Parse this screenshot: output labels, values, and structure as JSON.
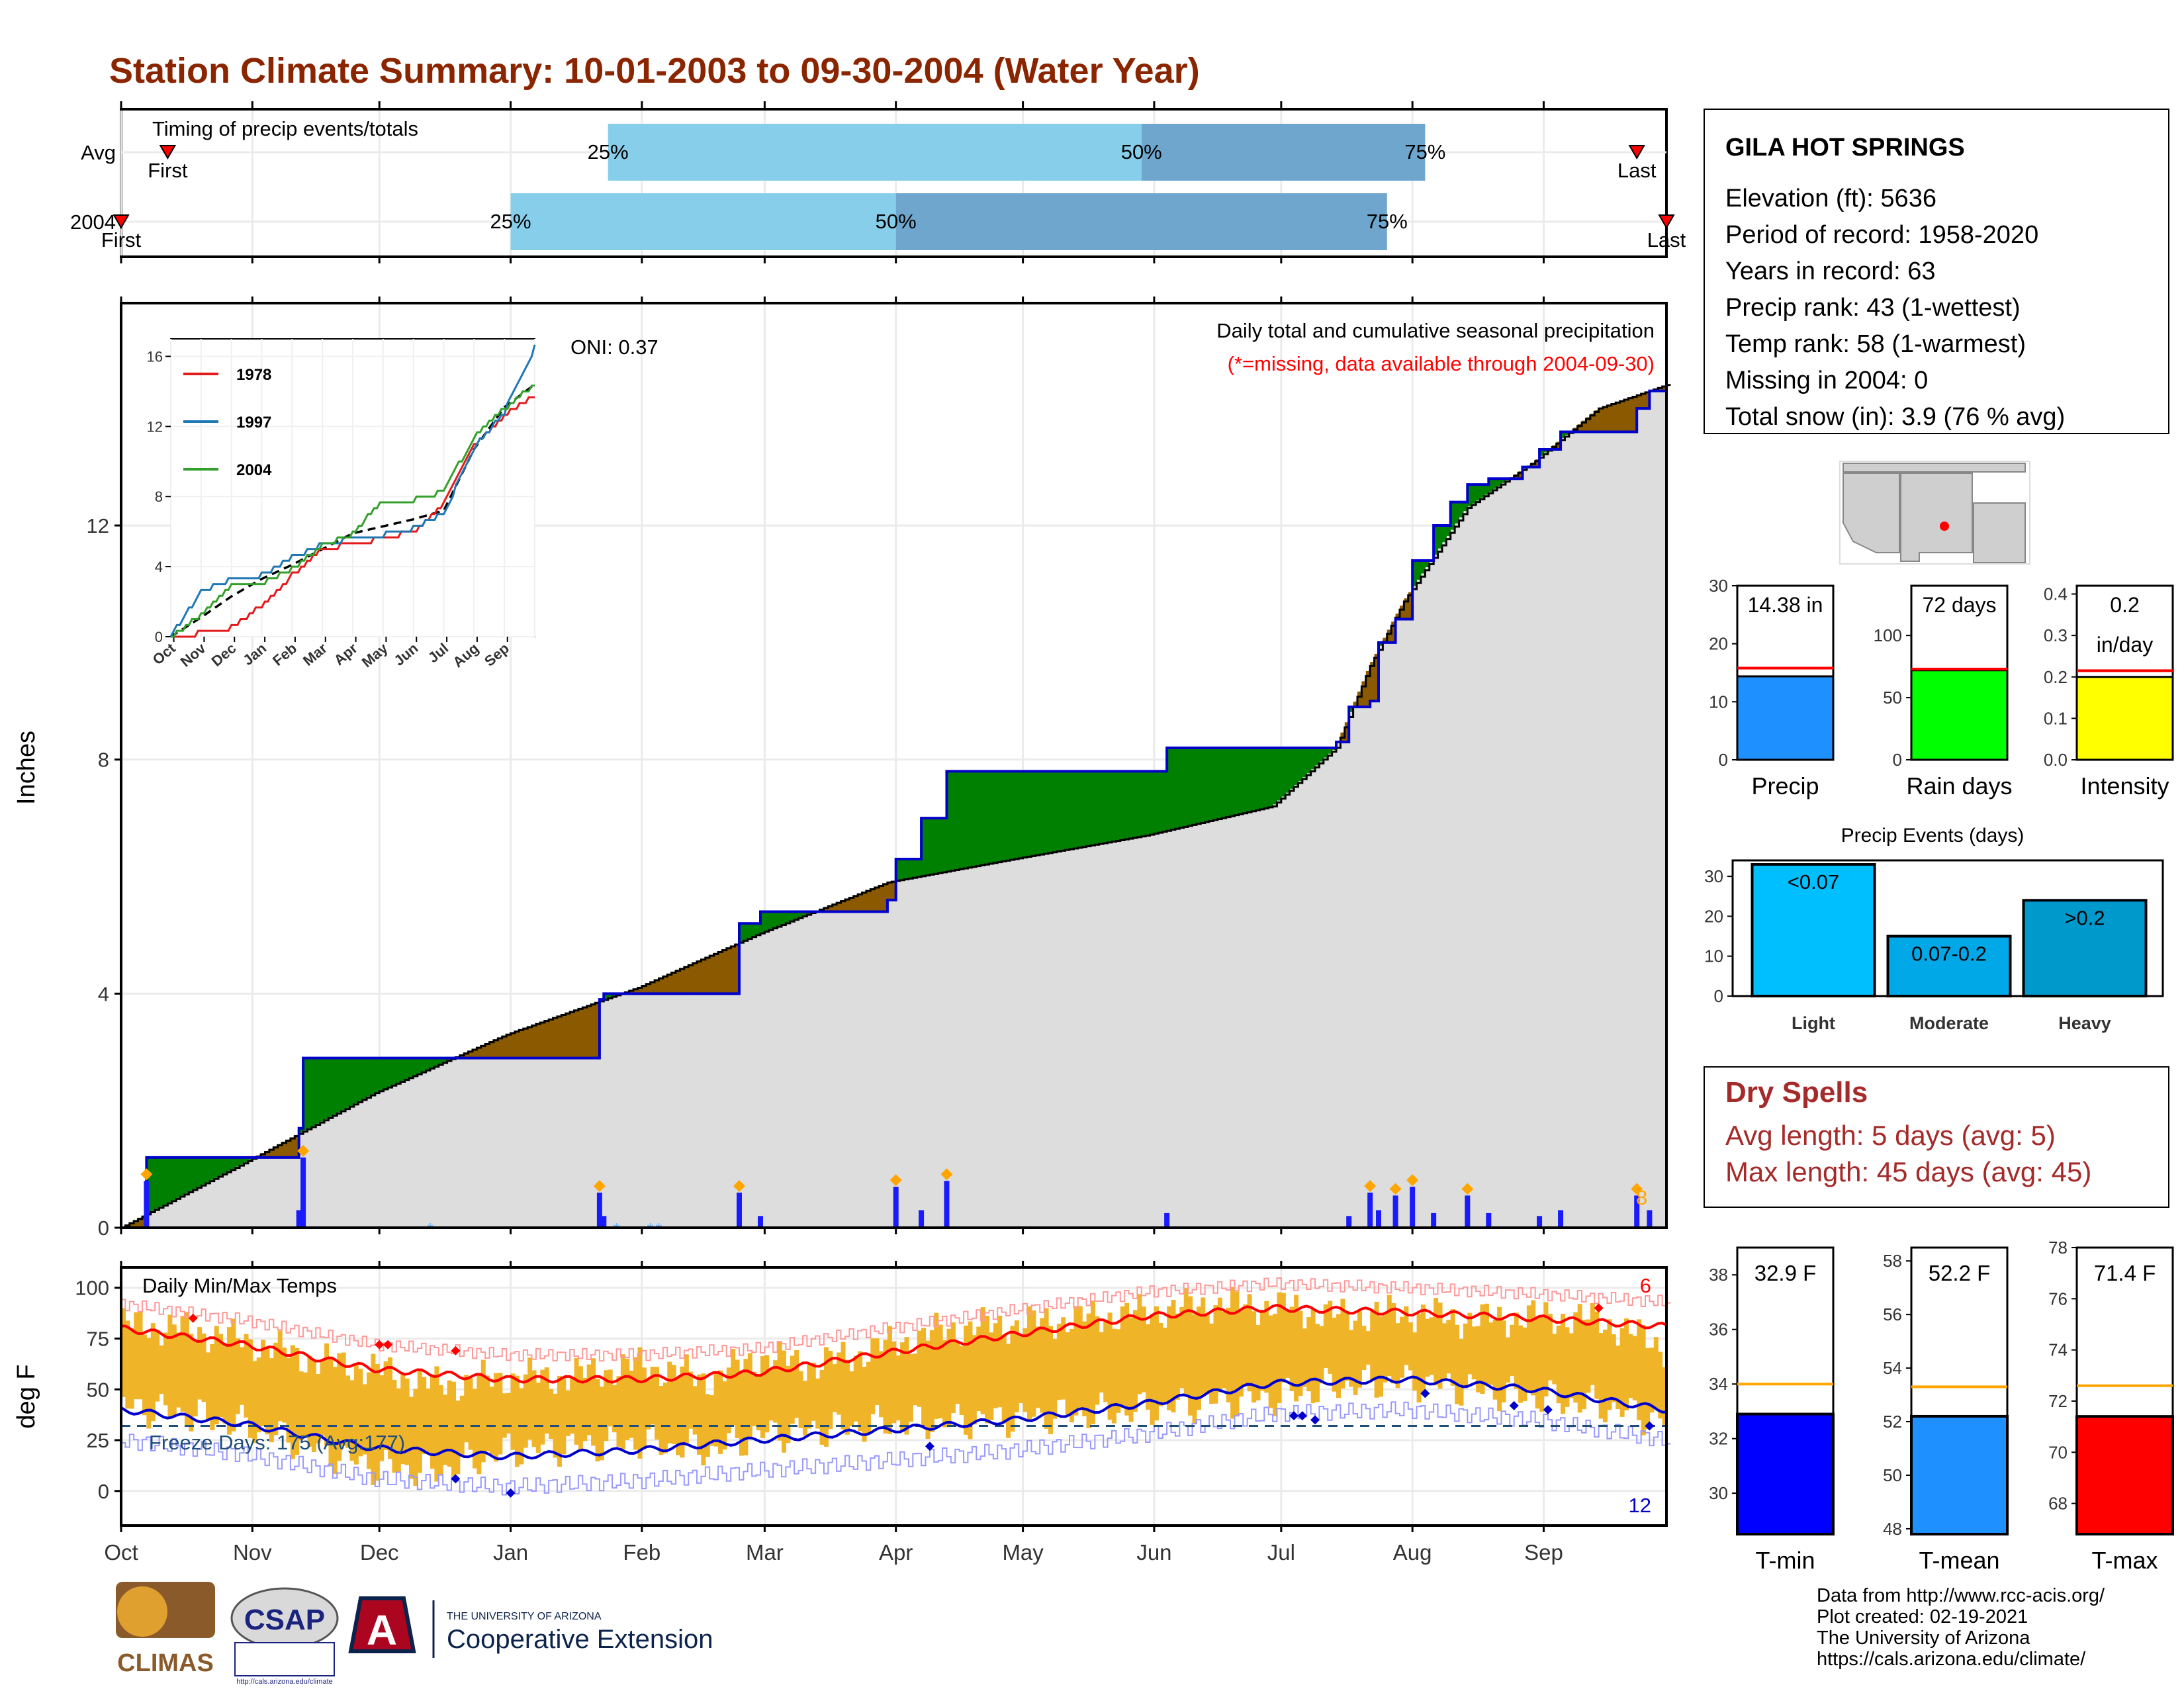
{
  "title": "Station Climate Summary: 10-01-2003 to 09-30-2004 (Water Year)",
  "timing": {
    "title": "Timing of precip events/totals",
    "rows": [
      {
        "label": "Avg",
        "first_day": 12,
        "p25_day": 116,
        "p50_day": 242,
        "p75_day": 309,
        "last_day": 359,
        "first_label": "First",
        "last_label": "Last",
        "p25_label": "25%",
        "p50_label": "50%",
        "p75_label": "75%"
      },
      {
        "label": "2004",
        "first_day": 1,
        "p25_day": 93,
        "p50_day": 184,
        "p75_day": 300,
        "last_day": 366,
        "first_label": "First",
        "last_label": "Last",
        "p25_label": "25%",
        "p50_label": "50%",
        "p75_label": "75%"
      }
    ]
  },
  "precip_panel": {
    "ylabel": "Inches",
    "yticks": [
      "0",
      "4",
      "8",
      "12"
    ],
    "note1": "Daily total and cumulative seasonal precipitation",
    "note2": "(*=missing, data available through 2004-09-30)",
    "oni": "ONI: 0.37",
    "corner_value": "8",
    "colors": {
      "cum2004": "#0000cc",
      "above": "#008000",
      "below": "#8b5a00",
      "avg_fill": "#dddddd",
      "daily": "#1a1aff",
      "marker": "#ffa500",
      "snow": "#66b3ff"
    }
  },
  "inset": {
    "yticks": [
      "0",
      "4",
      "8",
      "12",
      "16"
    ],
    "xticks": [
      "Oct",
      "Nov",
      "Dec",
      "Jan",
      "Feb",
      "Mar",
      "Apr",
      "May",
      "Jun",
      "Jul",
      "Aug",
      "Sep"
    ],
    "legend": [
      {
        "name": "1978",
        "color": "#e31a1c"
      },
      {
        "name": "1997",
        "color": "#1f78b4"
      },
      {
        "name": "2004",
        "color": "#33a02c"
      }
    ]
  },
  "temp_panel": {
    "ylabel": "deg F",
    "title": "Daily Min/Max Temps",
    "yticks": [
      "0",
      "25",
      "50",
      "75",
      "100"
    ],
    "freeze_label": "Freeze Days: 175 (Avg:177)",
    "freeze_line": 32,
    "hi_count": "6",
    "lo_count": "12",
    "colors": {
      "bar": "#f0b429",
      "max": "#ff0000",
      "min": "#0000cc",
      "maxrec": "#ff9999",
      "minrec": "#9999ff",
      "freeze": "#1f4e79"
    }
  },
  "months": [
    "Oct",
    "Nov",
    "Dec",
    "Jan",
    "Feb",
    "Mar",
    "Apr",
    "May",
    "Jun",
    "Jul",
    "Aug",
    "Sep"
  ],
  "station": {
    "name": "GILA HOT SPRINGS",
    "lines": [
      "Elevation (ft): 5636",
      "Period of record: 1958-2020",
      "Years in record: 63",
      "Precip rank: 43 (1-wettest)",
      "Temp rank: 58 (1-warmest)",
      "Missing in 2004: 0",
      "Total snow (in): 3.9 (76 % avg)"
    ]
  },
  "bars_small": [
    {
      "label": "Precip",
      "value_text": "14.38 in",
      "value": 14.38,
      "avg": 15.8,
      "ymax": 30,
      "yticks": [
        "0",
        "10",
        "20",
        "30"
      ],
      "color": "#1e90ff"
    },
    {
      "label": "Rain days",
      "value_text": "72 days",
      "value": 72,
      "avg": 73,
      "ymax": 140,
      "yticks": [
        "0",
        "50",
        "100"
      ],
      "color": "#00ff00"
    },
    {
      "label": "Intensity",
      "value_text": "0.2",
      "value_text2": "in/day",
      "value": 0.2,
      "avg": 0.215,
      "ymax": 0.42,
      "yticks": [
        "0.0",
        "0.1",
        "0.2",
        "0.3",
        "0.4"
      ],
      "color": "#ffff00"
    }
  ],
  "precip_events": {
    "title": "Precip Events (days)",
    "yticks": [
      "0",
      "10",
      "20",
      "30"
    ],
    "bars": [
      {
        "label": "Light",
        "value_label": "<0.07",
        "value": 33,
        "color": "#00bfff"
      },
      {
        "label": "Moderate",
        "value_label": "0.07-0.2",
        "value": 15,
        "color": "#00a8e8"
      },
      {
        "label": "Heavy",
        "value_label": ">0.2",
        "value": 24,
        "color": "#0099cc"
      }
    ]
  },
  "dry_spells": {
    "title": "Dry Spells",
    "avg": "Avg length: 5 days (avg: 5)",
    "max": "Max length: 45 days (avg: 45)"
  },
  "temp_bars": [
    {
      "label": "T-min",
      "value_text": "32.9 F",
      "value": 32.9,
      "avg": 34.0,
      "ymin": 28.5,
      "ymax": 39.0,
      "yticks": [
        "30",
        "32",
        "34",
        "36",
        "38"
      ],
      "color": "#0000ff"
    },
    {
      "label": "T-mean",
      "value_text": "52.2 F",
      "value": 52.2,
      "avg": 53.3,
      "ymin": 47.8,
      "ymax": 58.5,
      "yticks": [
        "48",
        "50",
        "52",
        "54",
        "56",
        "58"
      ],
      "color": "#1e90ff"
    },
    {
      "label": "T-max",
      "value_text": "71.4 F",
      "value": 71.4,
      "avg": 72.6,
      "ymin": 66.8,
      "ymax": 78.0,
      "yticks": [
        "68",
        "70",
        "72",
        "74",
        "76",
        "78"
      ],
      "color": "#ff0000"
    }
  ],
  "credits": [
    "Data from http://www.rcc-acis.org/",
    "Plot created: 02-19-2021",
    "The University of Arizona",
    "https://cals.arizona.edu/climate/"
  ],
  "logos": {
    "climas": "CLIMAS",
    "csap": "CSAP",
    "csap_url": "http://cals.arizona.edu/climate",
    "ua_small": "THE UNIVERSITY OF ARIZONA",
    "ua_big": "Cooperative Extension",
    "ua_letter": "A"
  },
  "chart_data": [
    {
      "type": "area",
      "title": "Daily total and cumulative seasonal precipitation",
      "ylabel": "Inches",
      "ylim": [
        0,
        15.8
      ],
      "x_unit": "day of water year",
      "cumulative_2004": {
        "x": [
          1,
          7,
          12,
          43,
          44,
          105,
          114,
          115,
          147,
          152,
          182,
          184,
          190,
          196,
          244,
          248,
          268,
          288,
          291,
          296,
          298,
          302,
          306,
          311,
          315,
          319,
          324,
          332,
          336,
          341,
          350,
          359,
          362,
          366
        ],
        "y": [
          0.0,
          1.2,
          1.2,
          1.7,
          2.9,
          2.9,
          3.9,
          4.0,
          5.2,
          5.4,
          5.6,
          6.3,
          7.0,
          7.8,
          7.8,
          8.2,
          8.2,
          8.3,
          8.9,
          9.0,
          10.0,
          10.4,
          11.4,
          12.0,
          12.4,
          12.7,
          12.8,
          13.0,
          13.3,
          13.6,
          13.6,
          14.0,
          14.3,
          14.4
        ]
      },
      "average": {
        "x": [
          1,
          30,
          61,
          92,
          123,
          151,
          182,
          212,
          243,
          273,
          288,
          296,
          304,
          319,
          335,
          350,
          366
        ],
        "y": [
          0.0,
          1.1,
          2.3,
          3.3,
          4.1,
          5.0,
          5.9,
          6.3,
          6.7,
          7.2,
          8.2,
          9.6,
          10.7,
          12.3,
          13.1,
          14.0,
          14.4
        ]
      },
      "daily_2004": {
        "x": [
          7,
          43,
          44,
          114,
          115,
          147,
          152,
          184,
          190,
          196,
          248,
          291,
          296,
          298,
          302,
          306,
          311,
          319,
          324,
          336,
          341,
          359,
          362
        ],
        "y": [
          0.8,
          0.3,
          1.2,
          0.6,
          0.2,
          0.6,
          0.2,
          0.7,
          0.3,
          0.8,
          0.25,
          0.2,
          0.6,
          0.3,
          0.55,
          0.7,
          0.25,
          0.55,
          0.25,
          0.2,
          0.3,
          0.55,
          0.3
        ]
      },
      "inset_cumulative": {
        "x_months": [
          "Oct",
          "Nov",
          "Dec",
          "Jan",
          "Feb",
          "Mar",
          "Apr",
          "May",
          "Jun",
          "Jul",
          "Aug",
          "Sep",
          "end"
        ],
        "average": [
          0.0,
          1.1,
          2.3,
          3.3,
          4.1,
          5.0,
          5.9,
          6.3,
          6.7,
          7.2,
          10.7,
          13.1,
          14.4
        ],
        "1978": [
          0.0,
          0.2,
          0.5,
          1.8,
          3.5,
          5.0,
          5.3,
          5.6,
          6.0,
          7.5,
          11.0,
          12.6,
          13.8
        ],
        "1997": [
          0.0,
          2.6,
          3.3,
          3.5,
          4.5,
          5.3,
          5.6,
          5.8,
          6.2,
          7.0,
          10.8,
          12.8,
          16.5
        ],
        "2004": [
          0.0,
          1.2,
          2.9,
          3.0,
          3.9,
          5.2,
          5.9,
          7.8,
          7.8,
          8.3,
          11.4,
          13.0,
          14.4
        ]
      }
    },
    {
      "type": "bar",
      "title": "Daily Min/Max Temps",
      "ylabel": "deg F",
      "ylim": [
        -17,
        110
      ],
      "x_unit": "day of water year",
      "avg_max": {
        "x": [
          1,
          30,
          61,
          92,
          123,
          151,
          182,
          212,
          243,
          273,
          304,
          335,
          366
        ],
        "y": [
          80,
          72,
          60,
          55,
          55,
          58,
          68,
          77,
          86,
          90,
          88,
          85,
          81
        ]
      },
      "avg_min": {
        "x": [
          1,
          30,
          61,
          92,
          123,
          151,
          182,
          212,
          243,
          273,
          304,
          335,
          366
        ],
        "y": [
          40,
          33,
          21,
          17,
          20,
          25,
          30,
          35,
          43,
          53,
          55,
          50,
          40
        ]
      },
      "daily_max_2004": {
        "x": [
          1,
          15,
          30,
          45,
          60,
          75,
          92,
          105,
          123,
          140,
          151,
          165,
          182,
          197,
          212,
          228,
          243,
          258,
          273,
          288,
          304,
          320,
          335,
          350,
          366
        ],
        "y": [
          82,
          80,
          74,
          65,
          60,
          52,
          56,
          56,
          62,
          55,
          66,
          62,
          72,
          80,
          82,
          85,
          88,
          92,
          91,
          86,
          88,
          84,
          86,
          84,
          70
        ]
      },
      "daily_min_2004": {
        "x": [
          1,
          15,
          30,
          45,
          60,
          75,
          92,
          105,
          123,
          140,
          151,
          165,
          182,
          197,
          212,
          228,
          243,
          258,
          273,
          288,
          304,
          320,
          335,
          350,
          366
        ],
        "y": [
          42,
          38,
          32,
          22,
          12,
          10,
          20,
          22,
          24,
          20,
          28,
          30,
          33,
          34,
          36,
          38,
          40,
          44,
          46,
          52,
          54,
          50,
          46,
          42,
          34
        ]
      }
    },
    {
      "type": "bar",
      "title": "Precip Events (days)",
      "categories": [
        "Light",
        "Moderate",
        "Heavy"
      ],
      "values": [
        33,
        15,
        24
      ],
      "ylim": [
        0,
        34
      ]
    },
    {
      "type": "bar",
      "categories": [
        "Precip",
        "Rain days",
        "Intensity"
      ],
      "values": [
        14.38,
        72,
        0.2
      ]
    },
    {
      "type": "bar",
      "categories": [
        "T-min",
        "T-mean",
        "T-max"
      ],
      "values": [
        32.9,
        52.2,
        71.4
      ]
    }
  ]
}
